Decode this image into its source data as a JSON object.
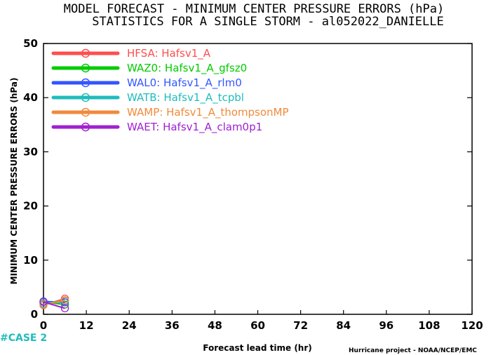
{
  "chart_data": {
    "type": "line",
    "title": "MODEL FORECAST - MINIMUM CENTER PRESSURE ERRORS (hPa)",
    "subtitle": "STATISTICS FOR A SINGLE STORM - al052022_DANIELLE",
    "xlabel": "Forecast lead time (hr)",
    "ylabel": "MINIMUM CENTER PRESSURE ERRORS (hPa)",
    "xlim": [
      0,
      120
    ],
    "ylim": [
      0,
      50
    ],
    "x_ticks": [
      "0",
      "12",
      "24",
      "36",
      "48",
      "60",
      "72",
      "84",
      "96",
      "108",
      "120"
    ],
    "y_ticks": [
      "0",
      "10",
      "20",
      "30",
      "40",
      "50"
    ],
    "x": [
      0,
      6
    ],
    "series": [
      {
        "name": "HFSA:  Hafsv1_A",
        "color": "#ff4d4d",
        "values": [
          1.7,
          2.9
        ]
      },
      {
        "name": "WAZ0:  Hafsv1_A_gfsz0",
        "color": "#00cc00",
        "values": [
          2.3,
          1.8
        ]
      },
      {
        "name": "WAL0:  Hafsv1_A_rlm0",
        "color": "#3355ff",
        "values": [
          2.4,
          2.2
        ]
      },
      {
        "name": "WATB:  Hafsv1_A_tcpbl",
        "color": "#1fbcbc",
        "values": [
          2.0,
          2.5
        ]
      },
      {
        "name": "WAMP:  Hafsv1_A_thompsonMP",
        "color": "#f08a3c",
        "values": [
          1.8,
          2.6
        ]
      },
      {
        "name": "WAET:  Hafsv1_A_clam0p1",
        "color": "#a020d0",
        "values": [
          2.3,
          1.1
        ]
      }
    ],
    "legend_position": "top-left",
    "grid": false
  },
  "case_label": "#CASE  2",
  "credit": "Hurricane project - NOAA/NCEP/EMC"
}
